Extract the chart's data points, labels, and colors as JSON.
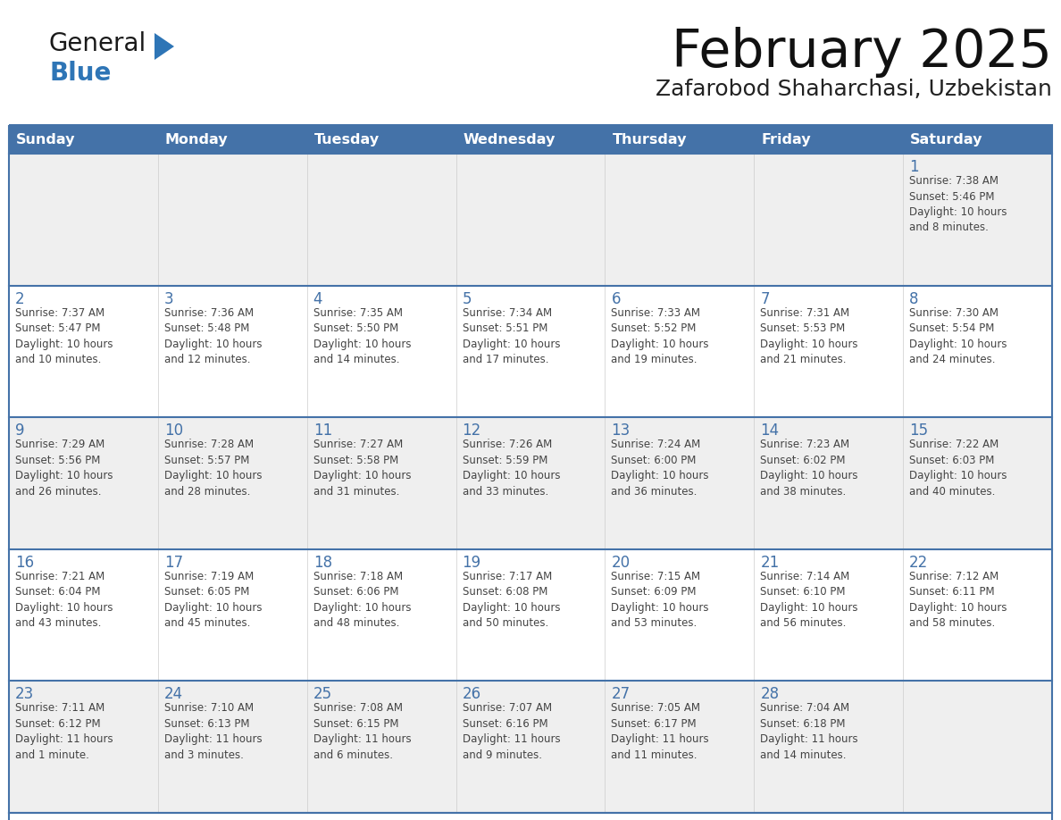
{
  "title": "February 2025",
  "subtitle": "Zafarobod Shaharchasi, Uzbekistan",
  "days_of_week": [
    "Sunday",
    "Monday",
    "Tuesday",
    "Wednesday",
    "Thursday",
    "Friday",
    "Saturday"
  ],
  "header_bg": "#4472a8",
  "header_text": "#ffffff",
  "cell_bg_odd": "#efefef",
  "cell_bg_even": "#ffffff",
  "cell_border_color": "#4472a8",
  "row_sep_color": "#4472a8",
  "day_num_color": "#4472a8",
  "text_color": "#444444",
  "logo_general_color": "#1a1a1a",
  "logo_blue_color": "#2e75b6",
  "calendar_data": [
    [
      null,
      null,
      null,
      null,
      null,
      null,
      {
        "day": "1",
        "sunrise": "7:38 AM",
        "sunset": "5:46 PM",
        "daylight": "10 hours and 8 minutes."
      }
    ],
    [
      {
        "day": "2",
        "sunrise": "7:37 AM",
        "sunset": "5:47 PM",
        "daylight": "10 hours and 10 minutes."
      },
      {
        "day": "3",
        "sunrise": "7:36 AM",
        "sunset": "5:48 PM",
        "daylight": "10 hours and 12 minutes."
      },
      {
        "day": "4",
        "sunrise": "7:35 AM",
        "sunset": "5:50 PM",
        "daylight": "10 hours and 14 minutes."
      },
      {
        "day": "5",
        "sunrise": "7:34 AM",
        "sunset": "5:51 PM",
        "daylight": "10 hours and 17 minutes."
      },
      {
        "day": "6",
        "sunrise": "7:33 AM",
        "sunset": "5:52 PM",
        "daylight": "10 hours and 19 minutes."
      },
      {
        "day": "7",
        "sunrise": "7:31 AM",
        "sunset": "5:53 PM",
        "daylight": "10 hours and 21 minutes."
      },
      {
        "day": "8",
        "sunrise": "7:30 AM",
        "sunset": "5:54 PM",
        "daylight": "10 hours and 24 minutes."
      }
    ],
    [
      {
        "day": "9",
        "sunrise": "7:29 AM",
        "sunset": "5:56 PM",
        "daylight": "10 hours and 26 minutes."
      },
      {
        "day": "10",
        "sunrise": "7:28 AM",
        "sunset": "5:57 PM",
        "daylight": "10 hours and 28 minutes."
      },
      {
        "day": "11",
        "sunrise": "7:27 AM",
        "sunset": "5:58 PM",
        "daylight": "10 hours and 31 minutes."
      },
      {
        "day": "12",
        "sunrise": "7:26 AM",
        "sunset": "5:59 PM",
        "daylight": "10 hours and 33 minutes."
      },
      {
        "day": "13",
        "sunrise": "7:24 AM",
        "sunset": "6:00 PM",
        "daylight": "10 hours and 36 minutes."
      },
      {
        "day": "14",
        "sunrise": "7:23 AM",
        "sunset": "6:02 PM",
        "daylight": "10 hours and 38 minutes."
      },
      {
        "day": "15",
        "sunrise": "7:22 AM",
        "sunset": "6:03 PM",
        "daylight": "10 hours and 40 minutes."
      }
    ],
    [
      {
        "day": "16",
        "sunrise": "7:21 AM",
        "sunset": "6:04 PM",
        "daylight": "10 hours and 43 minutes."
      },
      {
        "day": "17",
        "sunrise": "7:19 AM",
        "sunset": "6:05 PM",
        "daylight": "10 hours and 45 minutes."
      },
      {
        "day": "18",
        "sunrise": "7:18 AM",
        "sunset": "6:06 PM",
        "daylight": "10 hours and 48 minutes."
      },
      {
        "day": "19",
        "sunrise": "7:17 AM",
        "sunset": "6:08 PM",
        "daylight": "10 hours and 50 minutes."
      },
      {
        "day": "20",
        "sunrise": "7:15 AM",
        "sunset": "6:09 PM",
        "daylight": "10 hours and 53 minutes."
      },
      {
        "day": "21",
        "sunrise": "7:14 AM",
        "sunset": "6:10 PM",
        "daylight": "10 hours and 56 minutes."
      },
      {
        "day": "22",
        "sunrise": "7:12 AM",
        "sunset": "6:11 PM",
        "daylight": "10 hours and 58 minutes."
      }
    ],
    [
      {
        "day": "23",
        "sunrise": "7:11 AM",
        "sunset": "6:12 PM",
        "daylight": "11 hours and 1 minute."
      },
      {
        "day": "24",
        "sunrise": "7:10 AM",
        "sunset": "6:13 PM",
        "daylight": "11 hours and 3 minutes."
      },
      {
        "day": "25",
        "sunrise": "7:08 AM",
        "sunset": "6:15 PM",
        "daylight": "11 hours and 6 minutes."
      },
      {
        "day": "26",
        "sunrise": "7:07 AM",
        "sunset": "6:16 PM",
        "daylight": "11 hours and 9 minutes."
      },
      {
        "day": "27",
        "sunrise": "7:05 AM",
        "sunset": "6:17 PM",
        "daylight": "11 hours and 11 minutes."
      },
      {
        "day": "28",
        "sunrise": "7:04 AM",
        "sunset": "6:18 PM",
        "daylight": "11 hours and 14 minutes."
      },
      null
    ]
  ]
}
